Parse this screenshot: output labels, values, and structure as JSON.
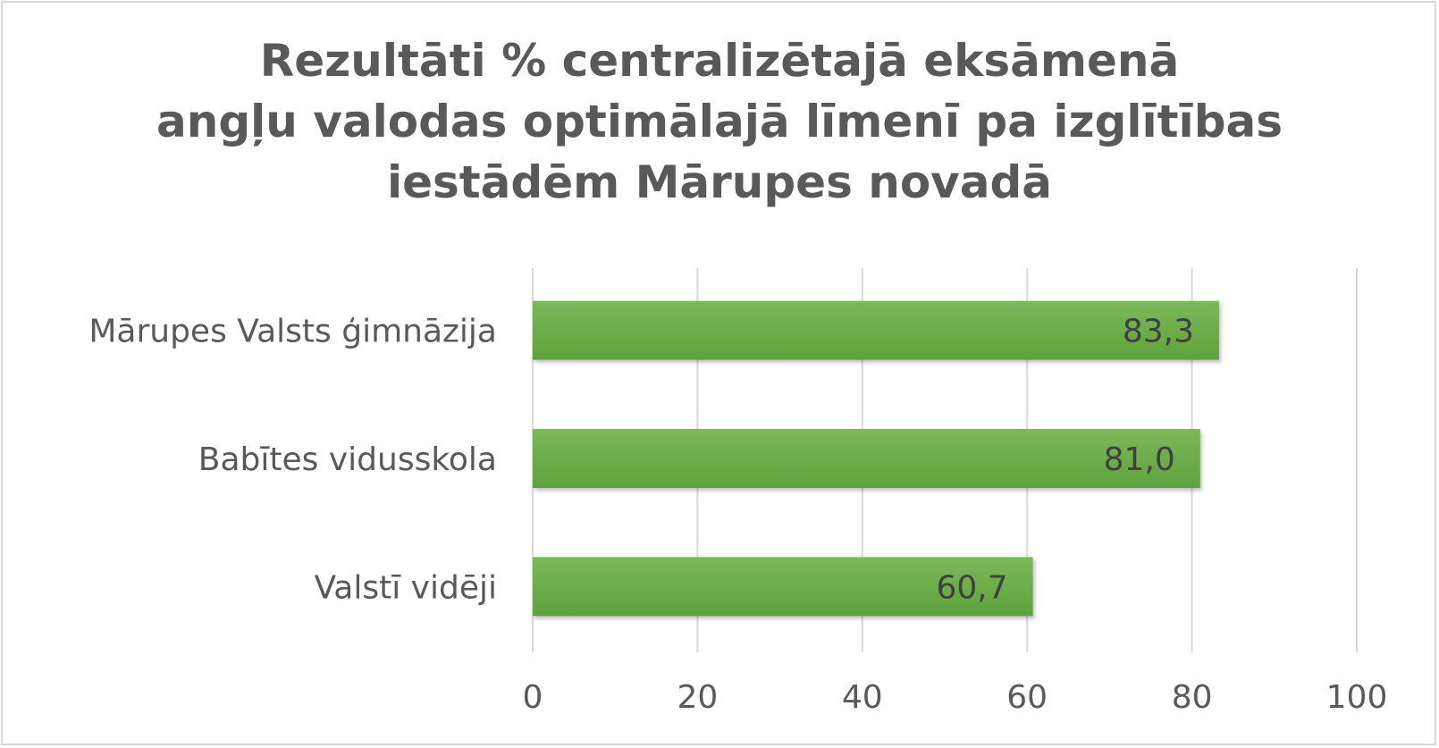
{
  "chart_data": {
    "type": "bar",
    "orientation": "horizontal",
    "title_lines": [
      "Rezultāti % centralizētajā eksāmenā",
      "angļu valodas optimālajā līmenī pa izglītības",
      "iestādēm Mārupes novadā"
    ],
    "categories": [
      "Mārupes Valsts ģimnāzija",
      "Babītes vidusskola",
      "Valstī vidēji"
    ],
    "values": [
      83.3,
      81.0,
      60.7
    ],
    "data_labels": [
      "83,3",
      "81,0",
      "60,7"
    ],
    "xlim": [
      0,
      100
    ],
    "xticks": [
      "0",
      "20",
      "40",
      "60",
      "80",
      "100"
    ],
    "xtick_values": [
      0,
      20,
      40,
      60,
      80,
      100
    ],
    "grid": "vertical",
    "legend": "none",
    "colors": {
      "bar_top": "#7cb85a",
      "bar_bottom": "#5fa23b",
      "grid": "#d9d9d9",
      "text": "#595959"
    }
  }
}
